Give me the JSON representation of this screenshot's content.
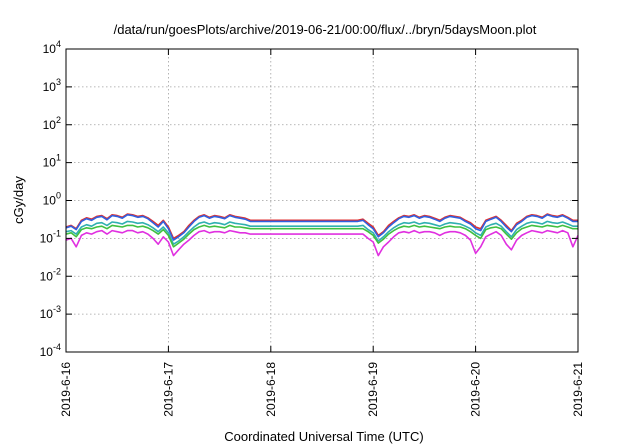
{
  "chart_data": {
    "type": "line",
    "title": "/data/run/goesPlots/archive/2019-06-21/00:00/flux/../bryn/5daysMoon.plot",
    "xlabel": "Coordinated Universal Time (UTC)",
    "ylabel": "cGy/day",
    "yscale": "log",
    "ylim": [
      0.0001,
      10000
    ],
    "xlim": [
      0,
      5
    ],
    "grid": true,
    "x_ticks": [
      {
        "value": 0,
        "label": "2019-6-16"
      },
      {
        "value": 1,
        "label": "2019-6-17"
      },
      {
        "value": 2,
        "label": "2019-6-18"
      },
      {
        "value": 3,
        "label": "2019-6-19"
      },
      {
        "value": 4,
        "label": "2019-6-20"
      },
      {
        "value": 5,
        "label": "2019-6-21"
      }
    ],
    "y_ticks": [
      {
        "value": 0.0001,
        "base": "10",
        "exp": "-4"
      },
      {
        "value": 0.001,
        "base": "10",
        "exp": "-3"
      },
      {
        "value": 0.01,
        "base": "10",
        "exp": "-2"
      },
      {
        "value": 0.1,
        "base": "10",
        "exp": "-1"
      },
      {
        "value": 1,
        "base": "10",
        "exp": "0"
      },
      {
        "value": 10,
        "base": "10",
        "exp": "1"
      },
      {
        "value": 100,
        "base": "10",
        "exp": "2"
      },
      {
        "value": 1000,
        "base": "10",
        "exp": "3"
      },
      {
        "value": 10000,
        "base": "10",
        "exp": "4"
      }
    ],
    "series": [
      {
        "color": "#e03030",
        "x": [
          0,
          0.05,
          0.1,
          0.15,
          0.2,
          0.25,
          0.3,
          0.35,
          0.4,
          0.45,
          0.5,
          0.55,
          0.6,
          0.65,
          0.7,
          0.75,
          0.8,
          0.85,
          0.9,
          0.95,
          1.0,
          1.05,
          1.1,
          1.15,
          1.2,
          1.25,
          1.3,
          1.35,
          1.4,
          1.45,
          1.5,
          1.55,
          1.6,
          1.65,
          1.7,
          1.75,
          1.8,
          2.0,
          2.5,
          2.85,
          2.9,
          2.95,
          3.0,
          3.05,
          3.1,
          3.15,
          3.2,
          3.25,
          3.3,
          3.35,
          3.4,
          3.45,
          3.5,
          3.55,
          3.6,
          3.65,
          3.7,
          3.75,
          3.8,
          3.85,
          3.9,
          3.95,
          4.0,
          4.05,
          4.1,
          4.15,
          4.2,
          4.25,
          4.3,
          4.35,
          4.4,
          4.45,
          4.5,
          4.55,
          4.6,
          4.65,
          4.7,
          4.75,
          4.8,
          4.85,
          4.9,
          4.95,
          5.0
        ],
        "y": [
          0.2,
          0.22,
          0.18,
          0.3,
          0.35,
          0.32,
          0.38,
          0.4,
          0.33,
          0.42,
          0.4,
          0.36,
          0.44,
          0.42,
          0.38,
          0.4,
          0.35,
          0.28,
          0.22,
          0.3,
          0.2,
          0.1,
          0.12,
          0.15,
          0.22,
          0.3,
          0.38,
          0.42,
          0.36,
          0.4,
          0.38,
          0.35,
          0.42,
          0.38,
          0.36,
          0.34,
          0.3,
          0.3,
          0.3,
          0.3,
          0.32,
          0.25,
          0.2,
          0.12,
          0.15,
          0.22,
          0.28,
          0.35,
          0.4,
          0.38,
          0.42,
          0.36,
          0.4,
          0.38,
          0.34,
          0.3,
          0.36,
          0.4,
          0.38,
          0.36,
          0.3,
          0.26,
          0.2,
          0.18,
          0.3,
          0.34,
          0.38,
          0.3,
          0.22,
          0.16,
          0.25,
          0.3,
          0.38,
          0.42,
          0.4,
          0.36,
          0.44,
          0.4,
          0.38,
          0.42,
          0.36,
          0.3,
          0.3
        ]
      },
      {
        "color": "#3060e0",
        "x": [
          0,
          0.05,
          0.1,
          0.15,
          0.2,
          0.25,
          0.3,
          0.35,
          0.4,
          0.45,
          0.5,
          0.55,
          0.6,
          0.65,
          0.7,
          0.75,
          0.8,
          0.85,
          0.9,
          0.95,
          1.0,
          1.05,
          1.1,
          1.15,
          1.2,
          1.25,
          1.3,
          1.35,
          1.4,
          1.45,
          1.5,
          1.55,
          1.6,
          1.65,
          1.7,
          1.75,
          1.8,
          2.0,
          2.5,
          2.85,
          2.9,
          2.95,
          3.0,
          3.05,
          3.1,
          3.15,
          3.2,
          3.25,
          3.3,
          3.35,
          3.4,
          3.45,
          3.5,
          3.55,
          3.6,
          3.65,
          3.7,
          3.75,
          3.8,
          3.85,
          3.9,
          3.95,
          4.0,
          4.05,
          4.1,
          4.15,
          4.2,
          4.25,
          4.3,
          4.35,
          4.4,
          4.45,
          4.5,
          4.55,
          4.6,
          4.65,
          4.7,
          4.75,
          4.8,
          4.85,
          4.9,
          4.95,
          5.0
        ],
        "y": [
          0.19,
          0.21,
          0.17,
          0.28,
          0.33,
          0.3,
          0.36,
          0.38,
          0.31,
          0.4,
          0.38,
          0.34,
          0.42,
          0.4,
          0.36,
          0.38,
          0.33,
          0.26,
          0.2,
          0.28,
          0.18,
          0.09,
          0.11,
          0.14,
          0.2,
          0.28,
          0.36,
          0.4,
          0.34,
          0.38,
          0.36,
          0.33,
          0.4,
          0.36,
          0.34,
          0.32,
          0.28,
          0.28,
          0.28,
          0.28,
          0.3,
          0.23,
          0.18,
          0.11,
          0.14,
          0.2,
          0.26,
          0.33,
          0.38,
          0.36,
          0.4,
          0.34,
          0.38,
          0.36,
          0.32,
          0.28,
          0.34,
          0.38,
          0.36,
          0.34,
          0.28,
          0.24,
          0.18,
          0.16,
          0.28,
          0.32,
          0.36,
          0.28,
          0.2,
          0.15,
          0.23,
          0.28,
          0.36,
          0.4,
          0.38,
          0.34,
          0.42,
          0.38,
          0.36,
          0.4,
          0.34,
          0.28,
          0.28
        ]
      },
      {
        "color": "#30b0b0",
        "x": [
          0,
          0.05,
          0.1,
          0.15,
          0.2,
          0.25,
          0.3,
          0.35,
          0.4,
          0.45,
          0.5,
          0.55,
          0.6,
          0.65,
          0.7,
          0.75,
          0.8,
          0.85,
          0.9,
          0.95,
          1.0,
          1.05,
          1.1,
          1.15,
          1.2,
          1.25,
          1.3,
          1.35,
          1.4,
          1.45,
          1.5,
          1.55,
          1.6,
          1.65,
          1.7,
          1.75,
          1.8,
          2.0,
          2.5,
          2.85,
          2.9,
          2.95,
          3.0,
          3.05,
          3.1,
          3.15,
          3.2,
          3.25,
          3.3,
          3.35,
          3.4,
          3.45,
          3.5,
          3.55,
          3.6,
          3.65,
          3.7,
          3.75,
          3.8,
          3.85,
          3.9,
          3.95,
          4.0,
          4.05,
          4.1,
          4.15,
          4.2,
          4.25,
          4.3,
          4.35,
          4.4,
          4.45,
          4.5,
          4.55,
          4.6,
          4.65,
          4.7,
          4.75,
          4.8,
          4.85,
          4.9,
          4.95,
          5.0
        ],
        "y": [
          0.15,
          0.16,
          0.13,
          0.2,
          0.23,
          0.21,
          0.25,
          0.26,
          0.22,
          0.27,
          0.26,
          0.24,
          0.28,
          0.27,
          0.25,
          0.26,
          0.23,
          0.19,
          0.15,
          0.2,
          0.14,
          0.07,
          0.085,
          0.11,
          0.15,
          0.2,
          0.25,
          0.27,
          0.24,
          0.26,
          0.25,
          0.23,
          0.27,
          0.25,
          0.24,
          0.23,
          0.21,
          0.21,
          0.21,
          0.21,
          0.22,
          0.17,
          0.14,
          0.085,
          0.11,
          0.15,
          0.19,
          0.23,
          0.26,
          0.25,
          0.27,
          0.24,
          0.26,
          0.25,
          0.23,
          0.21,
          0.24,
          0.26,
          0.25,
          0.24,
          0.21,
          0.18,
          0.14,
          0.12,
          0.2,
          0.23,
          0.25,
          0.21,
          0.15,
          0.11,
          0.17,
          0.21,
          0.25,
          0.27,
          0.26,
          0.24,
          0.28,
          0.26,
          0.25,
          0.27,
          0.24,
          0.21,
          0.21
        ]
      },
      {
        "color": "#40c040",
        "x": [
          0,
          0.05,
          0.1,
          0.15,
          0.2,
          0.25,
          0.3,
          0.35,
          0.4,
          0.45,
          0.5,
          0.55,
          0.6,
          0.65,
          0.7,
          0.75,
          0.8,
          0.85,
          0.9,
          0.95,
          1.0,
          1.05,
          1.1,
          1.15,
          1.2,
          1.25,
          1.3,
          1.35,
          1.4,
          1.45,
          1.5,
          1.55,
          1.6,
          1.65,
          1.7,
          1.75,
          1.8,
          2.0,
          2.5,
          2.85,
          2.9,
          2.95,
          3.0,
          3.05,
          3.1,
          3.15,
          3.2,
          3.25,
          3.3,
          3.35,
          3.4,
          3.45,
          3.5,
          3.55,
          3.6,
          3.65,
          3.7,
          3.75,
          3.8,
          3.85,
          3.9,
          3.95,
          4.0,
          4.05,
          4.1,
          4.15,
          4.2,
          4.25,
          4.3,
          4.35,
          4.4,
          4.45,
          4.5,
          4.55,
          4.6,
          4.65,
          4.7,
          4.75,
          4.8,
          4.85,
          4.9,
          4.95,
          5.0
        ],
        "y": [
          0.13,
          0.14,
          0.11,
          0.17,
          0.19,
          0.18,
          0.2,
          0.21,
          0.18,
          0.22,
          0.21,
          0.2,
          0.22,
          0.22,
          0.2,
          0.21,
          0.19,
          0.16,
          0.13,
          0.17,
          0.12,
          0.06,
          0.075,
          0.095,
          0.13,
          0.17,
          0.2,
          0.22,
          0.2,
          0.21,
          0.2,
          0.19,
          0.22,
          0.2,
          0.2,
          0.19,
          0.18,
          0.18,
          0.18,
          0.18,
          0.18,
          0.15,
          0.12,
          0.075,
          0.095,
          0.13,
          0.16,
          0.19,
          0.21,
          0.2,
          0.22,
          0.2,
          0.21,
          0.2,
          0.19,
          0.18,
          0.2,
          0.21,
          0.2,
          0.2,
          0.18,
          0.15,
          0.12,
          0.1,
          0.17,
          0.19,
          0.2,
          0.18,
          0.13,
          0.095,
          0.14,
          0.18,
          0.2,
          0.22,
          0.21,
          0.2,
          0.22,
          0.21,
          0.2,
          0.22,
          0.2,
          0.18,
          0.18
        ]
      },
      {
        "color": "#e030e0",
        "x": [
          0,
          0.05,
          0.1,
          0.15,
          0.2,
          0.25,
          0.3,
          0.35,
          0.4,
          0.45,
          0.5,
          0.55,
          0.6,
          0.65,
          0.7,
          0.75,
          0.8,
          0.85,
          0.9,
          0.95,
          1.0,
          1.05,
          1.1,
          1.15,
          1.2,
          1.25,
          1.3,
          1.35,
          1.4,
          1.45,
          1.5,
          1.55,
          1.6,
          1.65,
          1.7,
          1.75,
          1.8,
          2.0,
          2.5,
          2.85,
          2.9,
          2.95,
          3.0,
          3.05,
          3.1,
          3.15,
          3.2,
          3.25,
          3.3,
          3.35,
          3.4,
          3.45,
          3.5,
          3.55,
          3.6,
          3.65,
          3.7,
          3.75,
          3.8,
          3.85,
          3.9,
          3.95,
          4.0,
          4.05,
          4.1,
          4.15,
          4.2,
          4.25,
          4.3,
          4.35,
          4.4,
          4.45,
          4.5,
          4.55,
          4.6,
          4.65,
          4.7,
          4.75,
          4.8,
          4.85,
          4.9,
          4.95,
          5.0
        ],
        "y": [
          0.09,
          0.1,
          0.06,
          0.12,
          0.14,
          0.13,
          0.15,
          0.16,
          0.13,
          0.16,
          0.15,
          0.14,
          0.16,
          0.16,
          0.14,
          0.15,
          0.13,
          0.1,
          0.07,
          0.11,
          0.08,
          0.035,
          0.05,
          0.07,
          0.09,
          0.12,
          0.15,
          0.16,
          0.14,
          0.15,
          0.15,
          0.14,
          0.16,
          0.15,
          0.14,
          0.14,
          0.13,
          0.13,
          0.13,
          0.13,
          0.13,
          0.1,
          0.08,
          0.035,
          0.06,
          0.08,
          0.11,
          0.14,
          0.15,
          0.14,
          0.16,
          0.14,
          0.15,
          0.15,
          0.14,
          0.12,
          0.14,
          0.15,
          0.15,
          0.14,
          0.12,
          0.09,
          0.04,
          0.06,
          0.11,
          0.13,
          0.15,
          0.12,
          0.07,
          0.05,
          0.09,
          0.12,
          0.14,
          0.16,
          0.15,
          0.14,
          0.16,
          0.15,
          0.14,
          0.16,
          0.14,
          0.06,
          0.12
        ]
      }
    ]
  }
}
